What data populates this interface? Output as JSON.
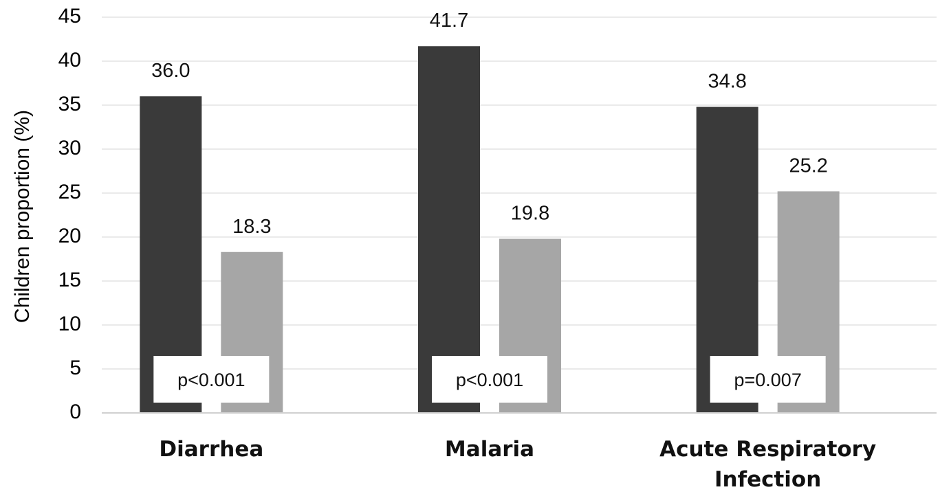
{
  "chart_data": {
    "type": "bar",
    "title": "",
    "xlabel": "",
    "ylabel": "Children proportion (%)",
    "ylim": [
      0,
      45
    ],
    "yticks": [
      0,
      5,
      10,
      15,
      20,
      25,
      30,
      35,
      40,
      45
    ],
    "grid": true,
    "legend": "none",
    "categories": [
      {
        "lines": [
          "Diarrhea"
        ]
      },
      {
        "lines": [
          "Malaria"
        ]
      },
      {
        "lines": [
          "Acute Respiratory",
          "Infection"
        ]
      }
    ],
    "series": [
      {
        "values": [
          36.0,
          41.7,
          34.8
        ],
        "labels": [
          "36.0",
          "41.7",
          "34.8"
        ],
        "color": "#3a3a3a"
      },
      {
        "values": [
          18.3,
          19.8,
          25.2
        ],
        "labels": [
          "18.3",
          "19.8",
          "25.2"
        ],
        "color": "#a6a6a6"
      }
    ],
    "annotations": [
      "p<0.001",
      "p<0.001",
      "p=0.007"
    ]
  }
}
